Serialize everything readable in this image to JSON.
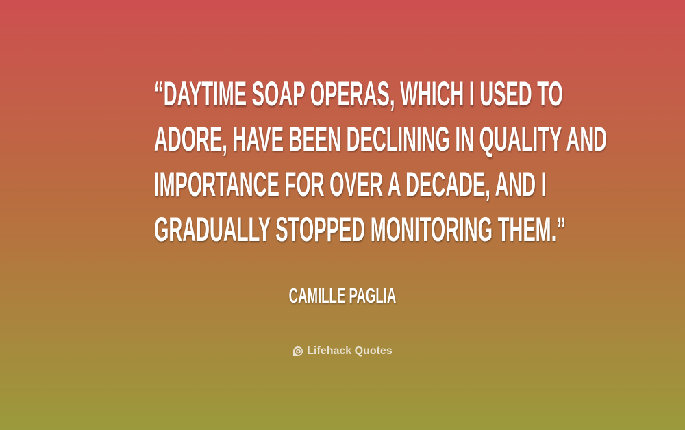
{
  "quote": {
    "lines": [
      "“DAYTIME SOAP OPERAS, WHICH I USED TO",
      "ADORE, HAVE BEEN DECLINING IN QUALITY AND",
      "IMPORTANCE FOR OVER A DECADE, AND I",
      "GRADUALLY STOPPED MONITORING THEM.”"
    ],
    "author": "CAMILLE PAGLIA"
  },
  "brand": {
    "name": "Lifehack Quotes",
    "icon": "lifehack-logo-icon"
  },
  "colors": {
    "top": "#cd4f50",
    "bottom": "#9b9a3c",
    "text": "#ffffff"
  }
}
